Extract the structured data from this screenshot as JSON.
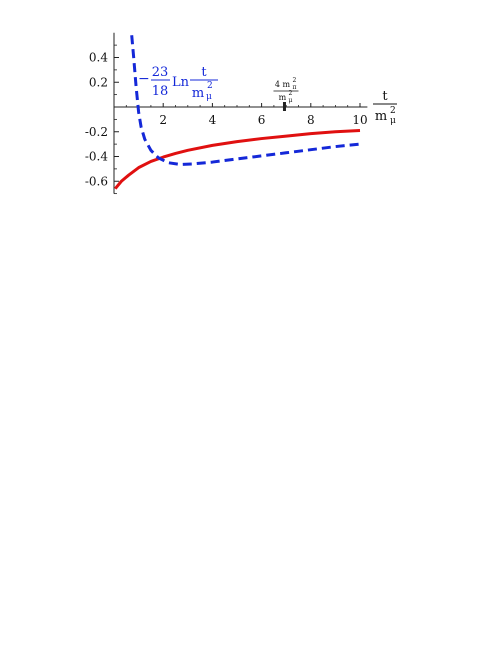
{
  "chart_data": {
    "type": "line",
    "x_range": [
      0,
      10
    ],
    "y_range": [
      -0.7,
      0.6
    ],
    "x_ticks": [
      2,
      4,
      6,
      8,
      10
    ],
    "x_tick_labels": [
      "2",
      "4",
      "6",
      "8",
      "10"
    ],
    "y_ticks": [
      0.4,
      0.2,
      -0.2,
      -0.4,
      -0.6
    ],
    "y_tick_labels": [
      "0.4",
      "0.2",
      "-0.2",
      "-0.4",
      "-0.6"
    ],
    "x_axis_label": {
      "numerator": "t",
      "denominator_base": "m",
      "denominator_sub": "μ",
      "denominator_sup": "2"
    },
    "marker": {
      "x": 6.93,
      "label_numerator": "4 m",
      "label_numerator_sub": "π",
      "label_numerator_sup": "2",
      "label_denominator": "m",
      "label_denominator_sub": "μ",
      "label_denominator_sup": "2"
    },
    "series": [
      {
        "color": "#e01010",
        "style": "solid",
        "points": [
          [
            0.05,
            -0.66
          ],
          [
            0.3,
            -0.6
          ],
          [
            0.6,
            -0.55
          ],
          [
            1.0,
            -0.49
          ],
          [
            1.5,
            -0.44
          ],
          [
            2.0,
            -0.405
          ],
          [
            2.5,
            -0.375
          ],
          [
            3.0,
            -0.35
          ],
          [
            4.0,
            -0.31
          ],
          [
            5.0,
            -0.28
          ],
          [
            6.0,
            -0.255
          ],
          [
            7.0,
            -0.235
          ],
          [
            8.0,
            -0.215
          ],
          [
            9.0,
            -0.2
          ],
          [
            10.0,
            -0.19
          ]
        ]
      },
      {
        "color": "#1428d8",
        "style": "dashed",
        "legend": {
          "minus": "−",
          "numerator": "23",
          "denominator": "18",
          "fn": "Ln",
          "arg_numerator": "t",
          "arg_denominator_base": "m",
          "arg_denominator_sub": "μ",
          "arg_denominator_sup": "2"
        },
        "points": [
          [
            0.72,
            0.58
          ],
          [
            0.8,
            0.4
          ],
          [
            0.9,
            0.16
          ],
          [
            1.0,
            -0.04
          ],
          [
            1.1,
            -0.16
          ],
          [
            1.25,
            -0.26
          ],
          [
            1.5,
            -0.35
          ],
          [
            1.8,
            -0.41
          ],
          [
            2.2,
            -0.45
          ],
          [
            2.7,
            -0.465
          ],
          [
            3.2,
            -0.46
          ],
          [
            4.0,
            -0.445
          ],
          [
            5.0,
            -0.42
          ],
          [
            6.0,
            -0.395
          ],
          [
            7.0,
            -0.37
          ],
          [
            8.0,
            -0.345
          ],
          [
            9.0,
            -0.32
          ],
          [
            10.0,
            -0.3
          ]
        ]
      }
    ]
  }
}
